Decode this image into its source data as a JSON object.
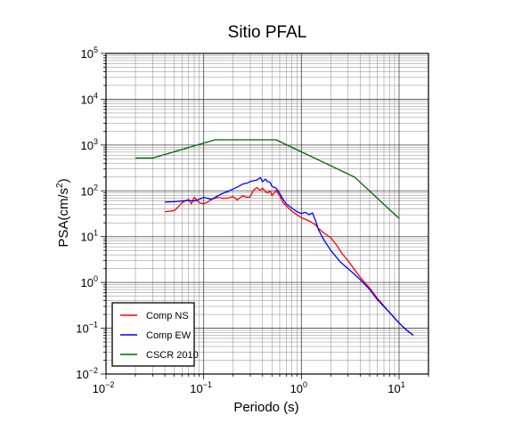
{
  "chart_data": {
    "type": "line",
    "title": "Sitio PFAL",
    "xlabel": "Periodo (s)",
    "ylabel": "PSA(cm/s2)",
    "ylabel_parts": [
      "PSA(cm/s",
      "2",
      ")"
    ],
    "x_scale": "log",
    "y_scale": "log",
    "xlim": [
      0.01,
      20
    ],
    "ylim": [
      0.01,
      100000
    ],
    "x_ticks": [
      {
        "base": "10",
        "exp": "−2"
      },
      {
        "base": "10",
        "exp": "−1"
      },
      {
        "base": "10",
        "exp": "0"
      },
      {
        "base": "10",
        "exp": "1"
      }
    ],
    "y_ticks": [
      {
        "base": "10",
        "exp": "−2"
      },
      {
        "base": "10",
        "exp": "−1"
      },
      {
        "base": "10",
        "exp": "0"
      },
      {
        "base": "10",
        "exp": "1"
      },
      {
        "base": "10",
        "exp": "2"
      },
      {
        "base": "10",
        "exp": "3"
      },
      {
        "base": "10",
        "exp": "4"
      },
      {
        "base": "10",
        "exp": "5"
      }
    ],
    "grid": true,
    "legend_position": "bottom-left",
    "series": [
      {
        "name": "Comp NS",
        "color": "#ff0000",
        "x": [
          0.04,
          0.05,
          0.055,
          0.06,
          0.065,
          0.07,
          0.075,
          0.08,
          0.09,
          0.1,
          0.11,
          0.12,
          0.14,
          0.16,
          0.18,
          0.2,
          0.22,
          0.25,
          0.28,
          0.3,
          0.32,
          0.35,
          0.38,
          0.4,
          0.43,
          0.45,
          0.48,
          0.5,
          0.55,
          0.6,
          0.65,
          0.7,
          0.8,
          0.9,
          1.0,
          1.2,
          1.4,
          1.5,
          1.7,
          2.0,
          2.3,
          2.6,
          3.0,
          3.5,
          4.0,
          5.0,
          6.0,
          8.0,
          10.0,
          12.0,
          14.0
        ],
        "y": [
          35,
          37,
          45,
          55,
          60,
          65,
          52,
          72,
          55,
          52,
          57,
          65,
          72,
          68,
          70,
          75,
          63,
          78,
          72,
          74,
          100,
          118,
          102,
          115,
          95,
          90,
          100,
          78,
          102,
          78,
          55,
          47,
          36,
          30,
          26,
          22,
          18,
          15,
          12,
          9.5,
          6.5,
          4.3,
          3.0,
          1.9,
          1.3,
          0.75,
          0.45,
          0.22,
          0.13,
          0.09,
          0.07
        ]
      },
      {
        "name": "Comp EW",
        "color": "#0000ff",
        "x": [
          0.04,
          0.05,
          0.06,
          0.07,
          0.08,
          0.09,
          0.1,
          0.12,
          0.14,
          0.16,
          0.18,
          0.2,
          0.22,
          0.25,
          0.28,
          0.3,
          0.32,
          0.35,
          0.38,
          0.4,
          0.43,
          0.45,
          0.48,
          0.5,
          0.55,
          0.6,
          0.65,
          0.7,
          0.8,
          0.9,
          1.0,
          1.1,
          1.2,
          1.3,
          1.4,
          1.5,
          1.7,
          2.0,
          2.5,
          3.0,
          3.5,
          4.0,
          5.0,
          6.0,
          8.0,
          10.0,
          12.0,
          14.0
        ],
        "y": [
          57,
          58,
          60,
          62,
          60,
          65,
          72,
          65,
          78,
          90,
          98,
          110,
          120,
          140,
          148,
          160,
          165,
          172,
          195,
          158,
          180,
          160,
          152,
          125,
          115,
          88,
          65,
          52,
          42,
          35,
          32,
          34,
          30,
          33,
          22,
          14,
          8.5,
          5.0,
          2.8,
          2.0,
          1.5,
          1.15,
          0.7,
          0.42,
          0.22,
          0.13,
          0.09,
          0.07
        ]
      },
      {
        "name": "CSCR 2010",
        "color": "#006400",
        "x": [
          0.02,
          0.03,
          0.13,
          0.55,
          3.5,
          10.0
        ],
        "y": [
          520,
          520,
          1300,
          1300,
          200,
          25
        ]
      }
    ]
  }
}
